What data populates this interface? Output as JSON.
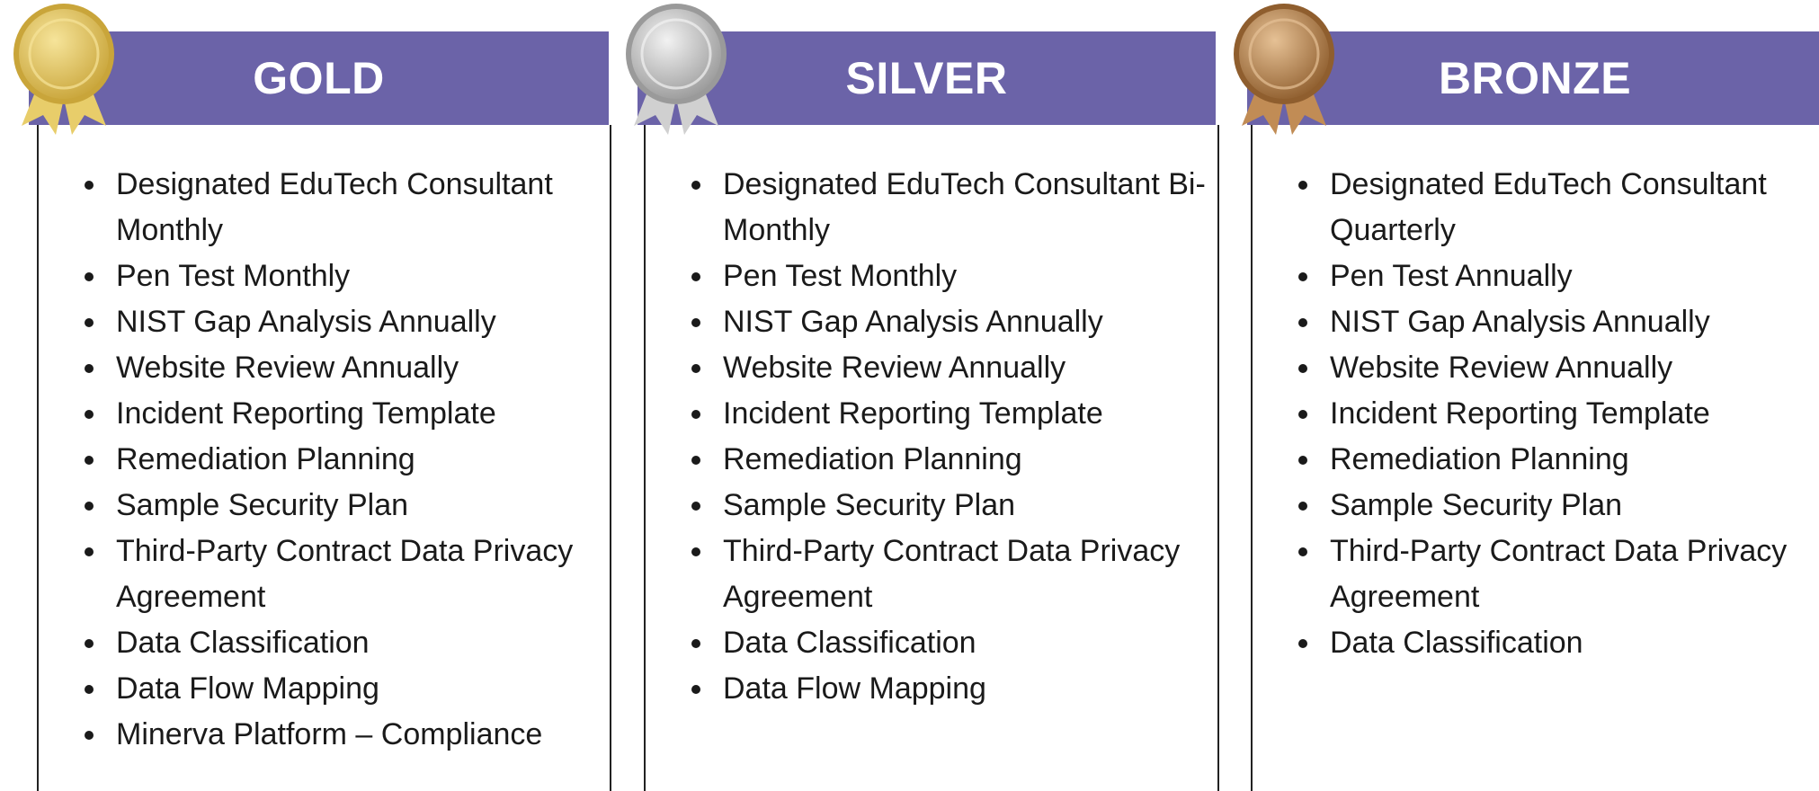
{
  "tiers": [
    {
      "title": "GOLD",
      "items": [
        "Designated EduTech Consultant Monthly",
        "Pen Test Monthly",
        "NIST Gap Analysis Annually",
        "Website Review Annually",
        "Incident Reporting Template",
        "Remediation Planning",
        "Sample Security Plan",
        "Third-Party Contract Data Privacy Agreement",
        "Data Classification",
        "Data Flow Mapping",
        "Minerva Platform – Compliance"
      ]
    },
    {
      "title": "SILVER",
      "items": [
        "Designated EduTech Consultant Bi-Monthly",
        "Pen Test Monthly",
        "NIST Gap Analysis Annually",
        "Website Review Annually",
        "Incident Reporting Template",
        "Remediation Planning",
        "Sample Security Plan",
        "Third-Party Contract Data Privacy Agreement",
        "Data Classification",
        "Data Flow Mapping"
      ]
    },
    {
      "title": "BRONZE",
      "items": [
        "Designated EduTech Consultant Quarterly",
        "Pen Test Annually",
        "NIST Gap Analysis Annually",
        "Website Review Annually",
        "Incident Reporting Template",
        "Remediation Planning",
        "Sample Security Plan",
        "Third-Party Contract Data Privacy Agreement",
        "Data Classification"
      ]
    }
  ]
}
